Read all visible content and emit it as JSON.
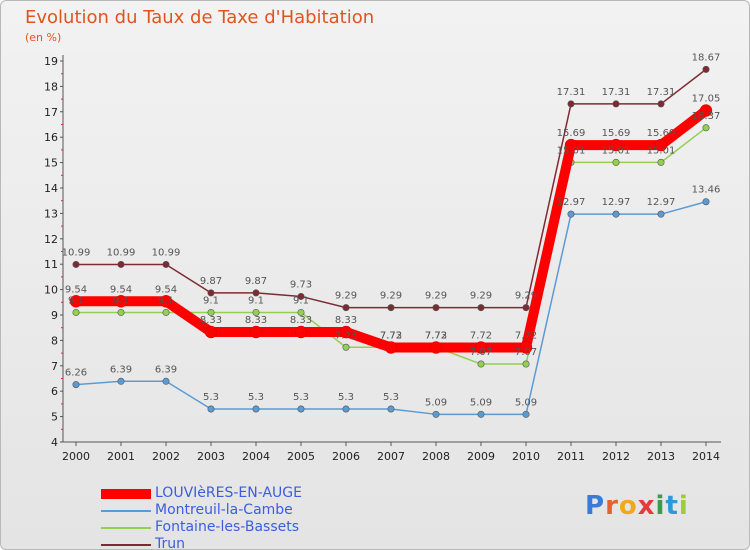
{
  "header": {
    "title": "Evolution du Taux de Taxe d'Habitation",
    "unit": "(en %)"
  },
  "logo": {
    "text": "Proxiti"
  },
  "chart_data": {
    "type": "line",
    "x": [
      "2000",
      "2001",
      "2002",
      "2003",
      "2004",
      "2005",
      "2006",
      "2007",
      "2008",
      "2009",
      "2010",
      "2011",
      "2012",
      "2013",
      "2014"
    ],
    "ylim": [
      4,
      19
    ],
    "yticks": [
      4,
      5,
      6,
      7,
      8,
      9,
      10,
      11,
      12,
      13,
      14,
      15,
      16,
      17,
      18,
      19
    ],
    "grid": false,
    "legend_position": "bottom-left",
    "series": [
      {
        "name": "LOUVIèRES-EN-AUGE",
        "color": "#ff0000",
        "values": [
          9.54,
          9.54,
          9.54,
          8.33,
          8.33,
          8.33,
          8.33,
          7.72,
          7.72,
          7.72,
          7.72,
          15.69,
          15.69,
          15.69,
          17.05
        ],
        "labels": [
          "9.54",
          "9.54",
          "9.54",
          "8.33",
          "8.33",
          "8.33",
          "8.33",
          "7.72",
          "7.72",
          "7.72",
          "7.72",
          "15.69",
          "15.69",
          "15.69",
          "17.05"
        ]
      },
      {
        "name": "Montreuil-la-Cambe",
        "color": "#5b9bd5",
        "values": [
          6.26,
          6.39,
          6.39,
          5.3,
          5.3,
          5.3,
          5.3,
          5.3,
          5.09,
          5.09,
          5.09,
          12.97,
          12.97,
          12.97,
          13.46
        ],
        "labels": [
          "6.26",
          "6.39",
          "6.39",
          "5.3",
          "5.3",
          "5.3",
          "5.3",
          "5.3",
          "5.09",
          "5.09",
          "5.09",
          "12.97",
          "12.97",
          "12.97",
          "13.46"
        ]
      },
      {
        "name": "Fontaine-les-Bassets",
        "color": "#92d050",
        "values": [
          9.1,
          9.1,
          9.1,
          9.1,
          9.1,
          9.1,
          7.73,
          7.73,
          7.73,
          7.07,
          7.07,
          15.01,
          15.01,
          15.01,
          16.37
        ],
        "labels": [
          "9.1",
          "9.1",
          "9.1",
          "9.1",
          "9.1",
          "9.1",
          "7.73",
          "7.73",
          "7.73",
          "7.07",
          "7.07",
          "15.01",
          "15.01",
          "15.01",
          "16.37"
        ]
      },
      {
        "name": "Trun",
        "color": "#7f2a33",
        "values": [
          10.99,
          10.99,
          10.99,
          9.87,
          9.87,
          9.73,
          9.29,
          9.29,
          9.29,
          9.29,
          9.29,
          17.31,
          17.31,
          17.31,
          18.67
        ],
        "labels": [
          "10.99",
          "10.99",
          "10.99",
          "9.87",
          "9.87",
          "9.73",
          "9.29",
          "9.29",
          "9.29",
          "9.29",
          "9.29",
          "17.31",
          "17.31",
          "17.31",
          "18.67"
        ]
      }
    ]
  }
}
